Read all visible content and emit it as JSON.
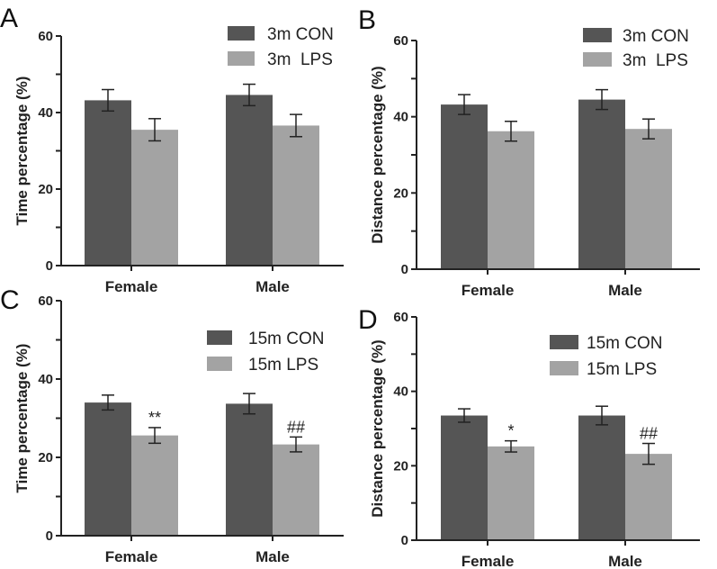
{
  "chart_data": [
    {
      "panel": "A",
      "type": "bar",
      "ylabel": "Time percentage (%)",
      "categories": [
        "Female",
        "Male"
      ],
      "ylim": [
        0,
        60
      ],
      "yticks": [
        0,
        20,
        40,
        60
      ],
      "colors": [
        "#555555",
        "#a3a3a3"
      ],
      "series": [
        {
          "name": "3m CON",
          "values": [
            43.2,
            44.6
          ],
          "errors": [
            2.8,
            2.8
          ],
          "annotations": [
            "",
            ""
          ]
        },
        {
          "name": "3m  LPS",
          "values": [
            35.5,
            36.6
          ],
          "errors": [
            2.9,
            2.9
          ],
          "annotations": [
            "",
            ""
          ]
        }
      ]
    },
    {
      "panel": "B",
      "type": "bar",
      "ylabel": "Distance percentage (%)",
      "categories": [
        "Female",
        "Male"
      ],
      "ylim": [
        0,
        60
      ],
      "yticks": [
        0,
        20,
        40,
        60
      ],
      "colors": [
        "#555555",
        "#a3a3a3"
      ],
      "series": [
        {
          "name": "3m CON",
          "values": [
            43.2,
            44.5
          ],
          "errors": [
            2.6,
            2.6
          ],
          "annotations": [
            "",
            ""
          ]
        },
        {
          "name": "3m  LPS",
          "values": [
            36.2,
            36.8
          ],
          "errors": [
            2.6,
            2.6
          ],
          "annotations": [
            "",
            ""
          ]
        }
      ]
    },
    {
      "panel": "C",
      "type": "bar",
      "ylabel": "Time percentage (%)",
      "categories": [
        "Female",
        "Male"
      ],
      "ylim": [
        0,
        60
      ],
      "yticks": [
        0,
        20,
        40,
        60
      ],
      "colors": [
        "#555555",
        "#a3a3a3"
      ],
      "series": [
        {
          "name": "15m CON",
          "values": [
            34.0,
            33.7
          ],
          "errors": [
            1.9,
            2.6
          ],
          "annotations": [
            "",
            ""
          ]
        },
        {
          "name": "15m LPS",
          "values": [
            25.6,
            23.3
          ],
          "errors": [
            2.0,
            1.9
          ],
          "annotations": [
            "**",
            "##"
          ]
        }
      ]
    },
    {
      "panel": "D",
      "type": "bar",
      "ylabel": "Distance percentage (%)",
      "categories": [
        "Female",
        "Male"
      ],
      "ylim": [
        0,
        60
      ],
      "yticks": [
        0,
        20,
        40,
        60
      ],
      "colors": [
        "#555555",
        "#a3a3a3"
      ],
      "series": [
        {
          "name": "15m CON",
          "values": [
            33.5,
            33.5
          ],
          "errors": [
            1.8,
            2.5
          ],
          "annotations": [
            "",
            ""
          ]
        },
        {
          "name": "15m LPS",
          "values": [
            25.2,
            23.2
          ],
          "errors": [
            1.5,
            2.8
          ],
          "annotations": [
            "*",
            "##"
          ]
        }
      ]
    }
  ]
}
